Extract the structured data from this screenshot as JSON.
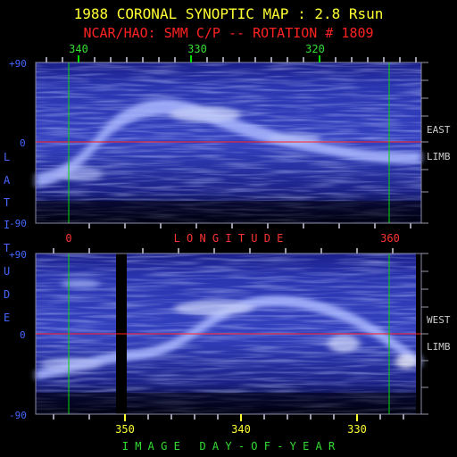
{
  "title": "1988 CORONAL SYNOPTIC MAP : 2.8 Rsun",
  "subtitle": "NCAR/HAO: SMM C/P -- ROTATION # 1809",
  "colors": {
    "title": "#ffff33",
    "subtitle": "#ff2222",
    "axis_text_blue": "#4466ff",
    "axis_text_green": "#33dd33",
    "axis_text_red": "#ff3333",
    "axis_text_yellow": "#ffff33",
    "equator_line": "#ff2020",
    "marker_line": "#00dd00",
    "panel_dark": "#05052a",
    "panel_mid": "#2a35b0",
    "panel_bright": "#c8d4ff"
  },
  "top_panel": {
    "top_axis_ticks": [
      "340",
      "330",
      "320"
    ],
    "lat_labels": [
      "+90",
      "0",
      "-90"
    ],
    "longitude_ticks": [
      "0",
      "360"
    ],
    "longitude_label": "L O N G I T U D E",
    "side_labels": [
      "EAST",
      "LIMB"
    ]
  },
  "bottom_panel": {
    "lat_labels": [
      "+90",
      "0",
      "-90"
    ],
    "day_ticks": [
      "350",
      "340",
      "330"
    ],
    "day_label": "I M A G E   D A Y - O F - Y E A R",
    "side_labels": [
      "WEST",
      "LIMB"
    ]
  },
  "latitude_label_letters": [
    "L",
    "A",
    "T",
    "I",
    "T",
    "U",
    "D",
    "E"
  ]
}
